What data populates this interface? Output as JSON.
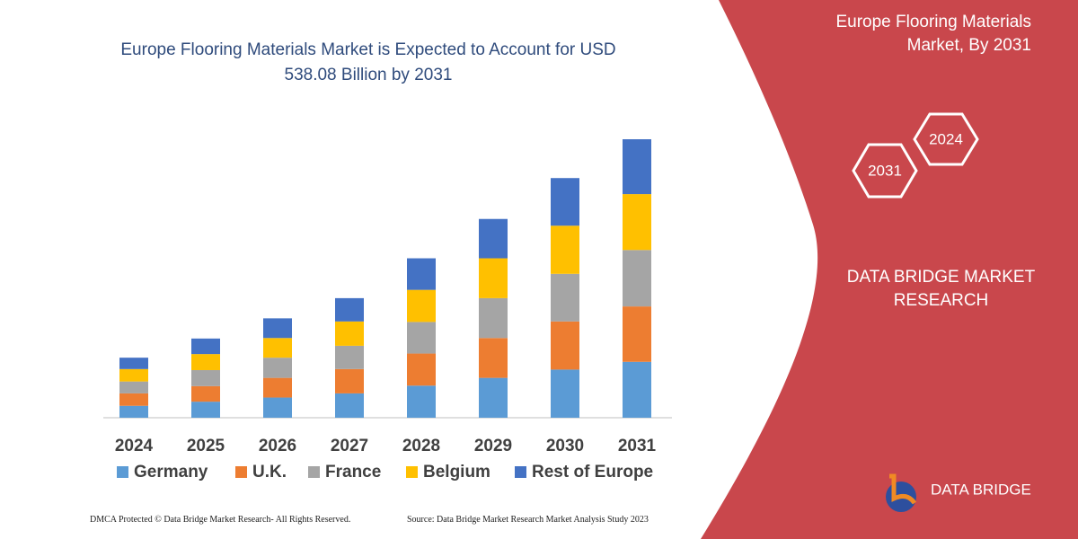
{
  "chart_data": {
    "type": "stacked-bar",
    "title": "Europe Flooring Materials Market is Expected to Account for USD 538.08 Billion by 2031",
    "categories": [
      "2024",
      "2025",
      "2026",
      "2027",
      "2028",
      "2029",
      "2030",
      "2031"
    ],
    "series": [
      {
        "name": "Germany",
        "color": "#5b9bd5",
        "values": [
          23,
          31,
          39,
          47,
          62,
          77,
          93,
          108
        ]
      },
      {
        "name": "U.K.",
        "color": "#ed7d31",
        "values": [
          24,
          30,
          38,
          47,
          62,
          77,
          93,
          107
        ]
      },
      {
        "name": "France",
        "color": "#a5a5a5",
        "values": [
          23,
          31,
          39,
          45,
          61,
          77,
          92,
          109
        ]
      },
      {
        "name": "Belgium",
        "color": "#ffc000",
        "values": [
          24,
          31,
          38,
          47,
          62,
          77,
          93,
          108
        ]
      },
      {
        "name": "Rest of Europe",
        "color": "#4472c4",
        "values": [
          22,
          30,
          38,
          45,
          61,
          76,
          92,
          106
        ]
      }
    ]
  },
  "panel": {
    "title": "Europe Flooring Materials Market, By 2031",
    "hex_right": "2024",
    "hex_left": "2031",
    "brand": "DATA BRIDGE MARKET RESEARCH",
    "logo": "DATA BRIDGE"
  },
  "footer": {
    "left": "DMCA Protected © Data Bridge Market Research-  All Rights Reserved.",
    "right": "Source: Data Bridge Market Research  Market Analysis Study 2023"
  }
}
